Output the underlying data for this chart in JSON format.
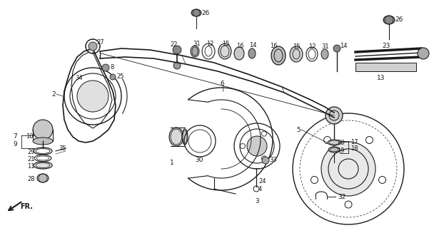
{
  "bg_color": "#ffffff",
  "line_color": "#1a1a1a",
  "fig_width": 6.22,
  "fig_height": 3.2,
  "dpi": 100
}
